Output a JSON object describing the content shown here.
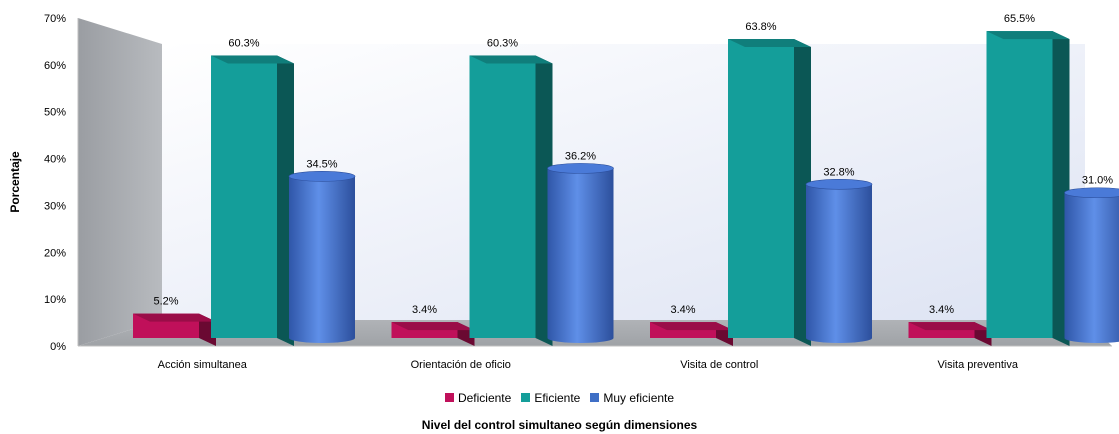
{
  "chart_data": {
    "type": "bar",
    "title": "",
    "xlabel": "Nivel del control simultaneo según dimensiones",
    "ylabel": "Porcentaje",
    "ylim": [
      0,
      70
    ],
    "yticks": [
      "0%",
      "10%",
      "20%",
      "30%",
      "40%",
      "50%",
      "60%",
      "70%"
    ],
    "categories": [
      "Acción simultanea",
      "Orientación de oficio",
      "Visita de control",
      "Visita preventiva"
    ],
    "series": [
      {
        "name": "Deficiente",
        "values": [
          5.2,
          3.4,
          3.4,
          3.4
        ],
        "labels": [
          "5.2%",
          "3.4%",
          "3.4%",
          "3.4%"
        ],
        "color": "#C0105A",
        "shape": "box"
      },
      {
        "name": "Eficiente",
        "values": [
          60.3,
          60.3,
          63.8,
          65.5
        ],
        "labels": [
          "60.3%",
          "60.3%",
          "63.8%",
          "65.5%"
        ],
        "color": "#149E9A",
        "shape": "box"
      },
      {
        "name": "Muy eficiente",
        "values": [
          34.5,
          36.2,
          32.8,
          31.0
        ],
        "labels": [
          "34.5%",
          "36.2%",
          "32.8%",
          "31.0%"
        ],
        "color": "#3F6FC6",
        "shape": "cylinder"
      }
    ],
    "legend_position": "bottom",
    "grid": false,
    "style": "3d"
  }
}
